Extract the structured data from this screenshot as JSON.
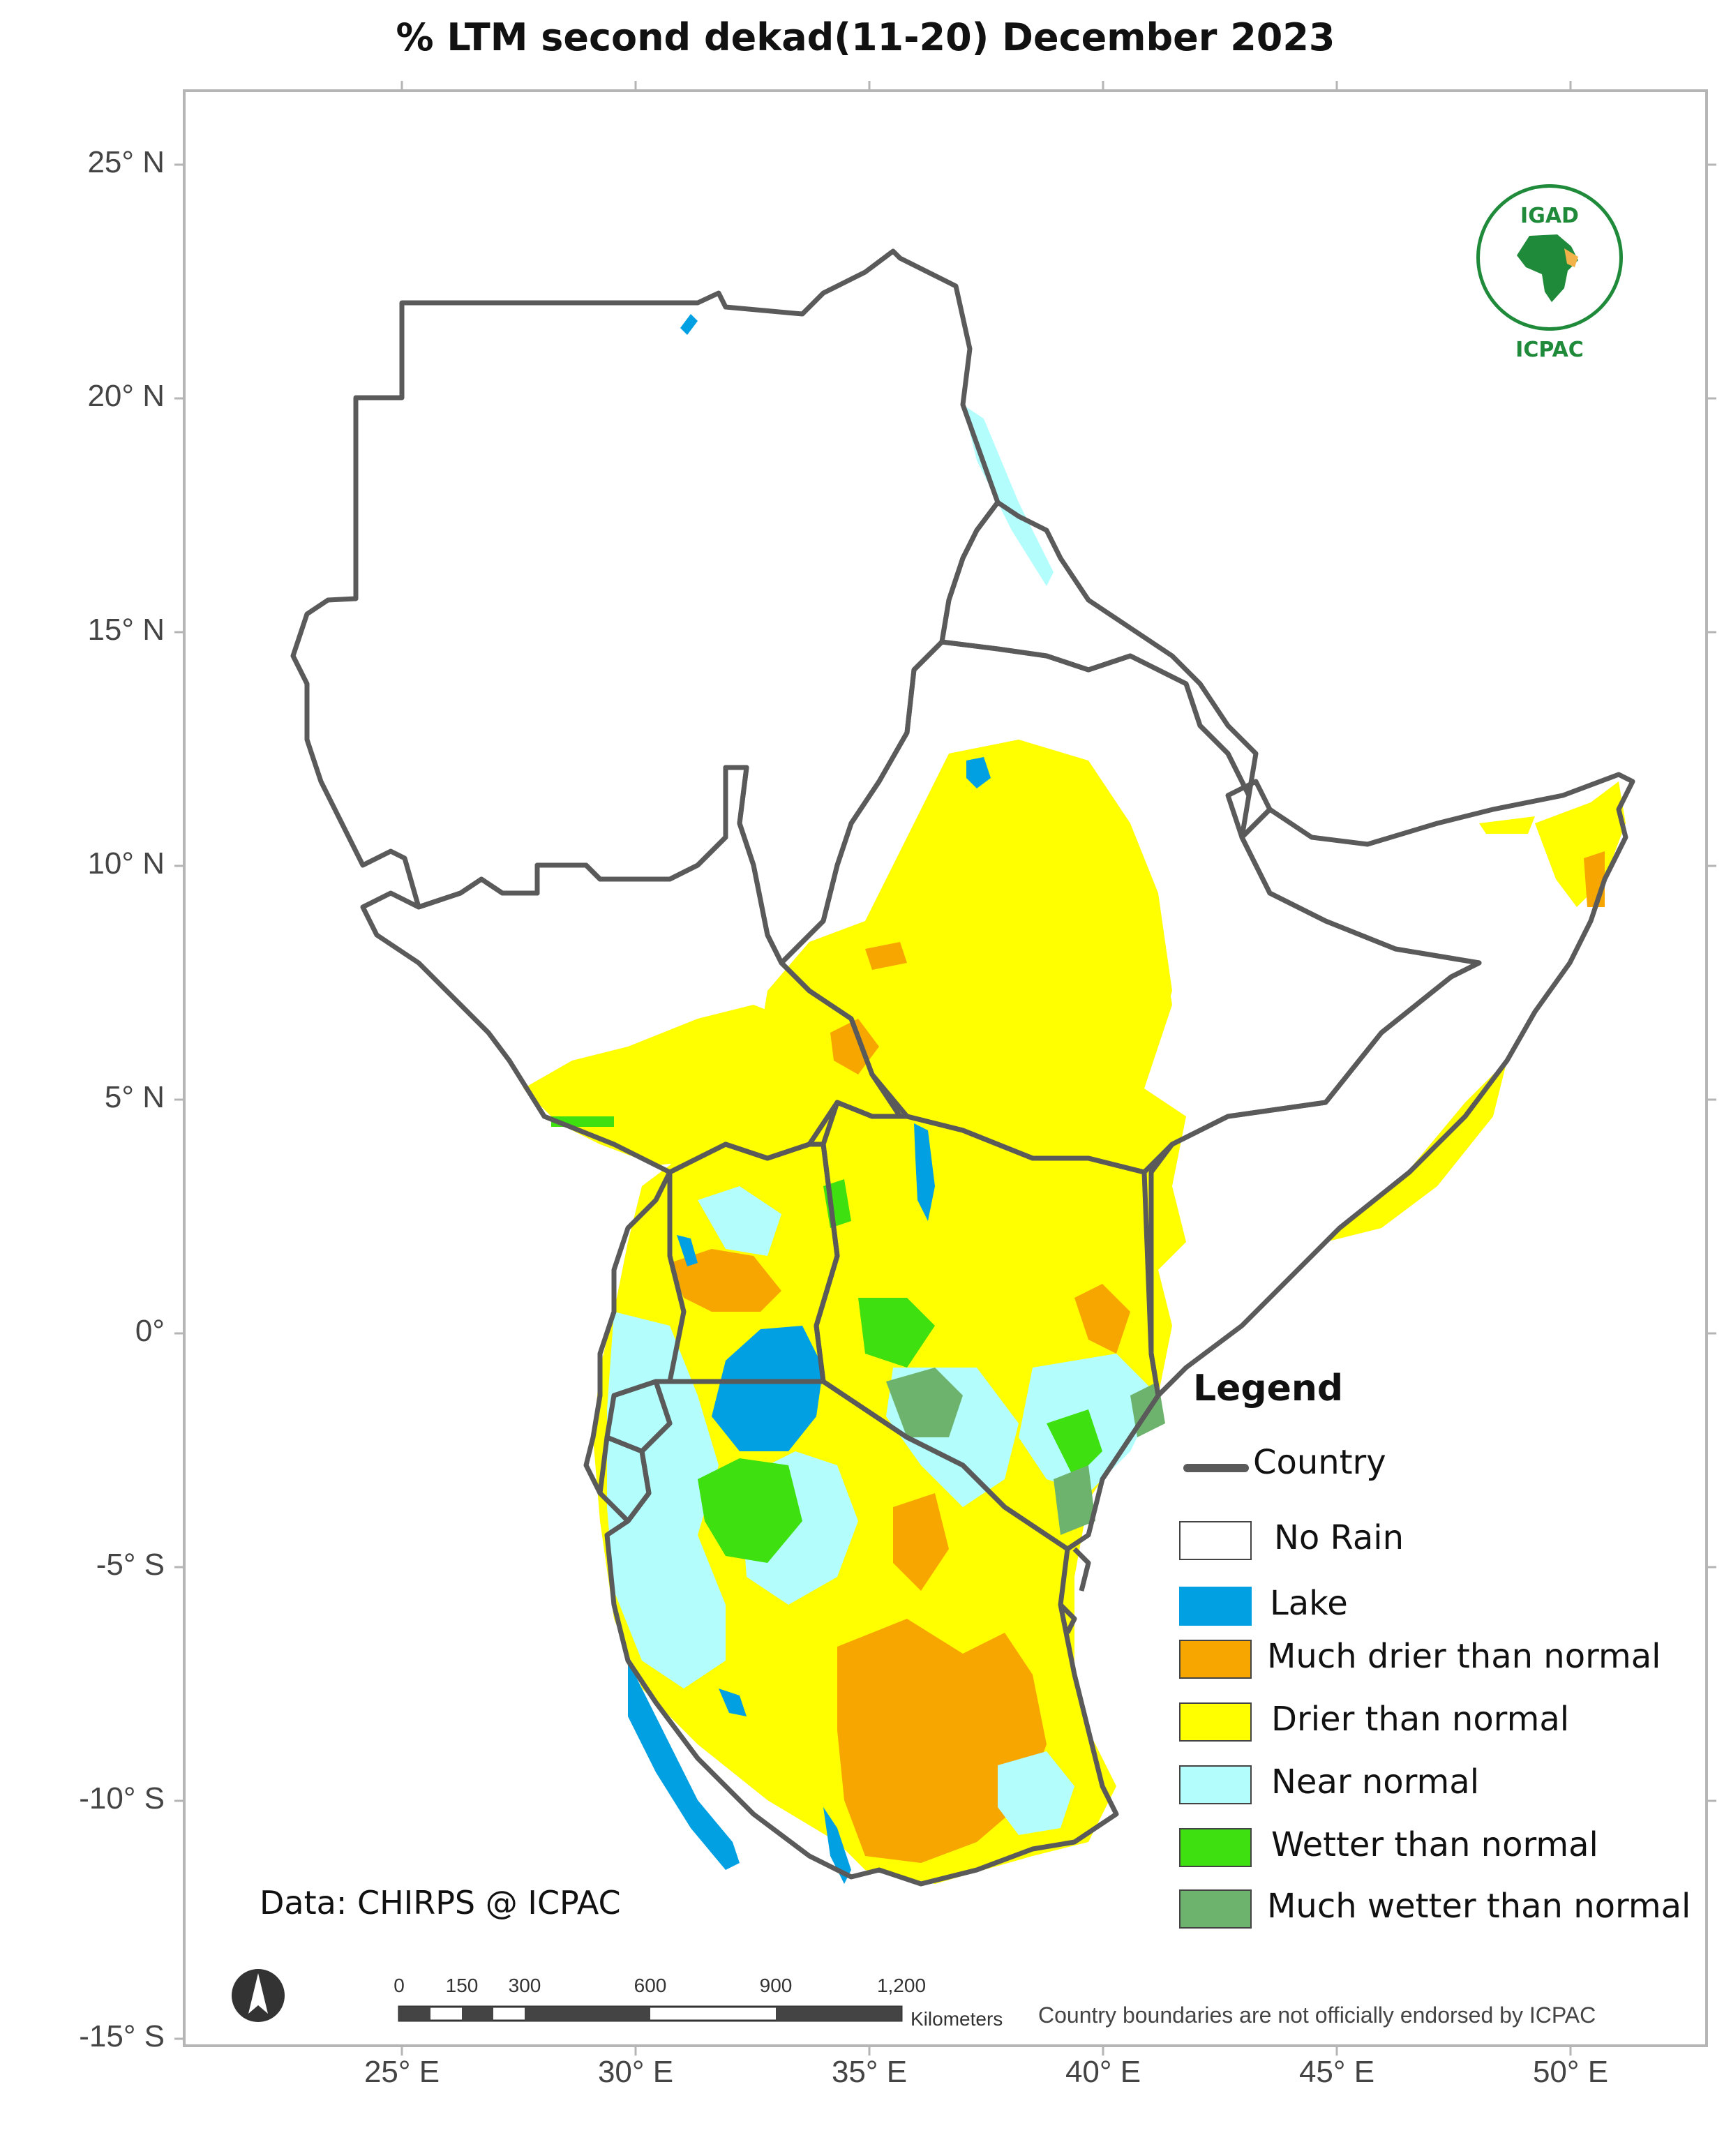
{
  "title": "% LTM  second dekad(11-20) December 2023",
  "axes": {
    "lat_labels": [
      "25° N",
      "20° N",
      "15° N",
      "10° N",
      "5° N",
      "0°",
      "-5° S",
      "-10° S",
      "-15° S"
    ],
    "lon_labels": [
      "25° E",
      "30° E",
      "35° E",
      "40° E",
      "45° E",
      "50° E"
    ]
  },
  "legend": {
    "title": "Legend",
    "country_label": "Country",
    "items": [
      {
        "label": "No Rain",
        "color": "#ffffff"
      },
      {
        "label": "Lake",
        "color": "#00a0e3"
      },
      {
        "label": "Much drier than normal",
        "color": "#f7a600"
      },
      {
        "label": "Drier than normal",
        "color": "#ffff00"
      },
      {
        "label": "Near normal",
        "color": "#b3fdfd"
      },
      {
        "label": "Wetter than normal",
        "color": "#3fe010"
      },
      {
        "label": "Much wetter than normal",
        "color": "#6db36d"
      }
    ]
  },
  "credit": "Data: CHIRPS @ ICPAC",
  "disclaimer": "Country boundaries are not officially endorsed by ICPAC",
  "scale_bar": {
    "ticks": [
      "0",
      "150",
      "300",
      "600",
      "900",
      "1,200"
    ],
    "unit": "Kilometers"
  },
  "logo": {
    "top_text": "IGAD",
    "bottom_text": "ICPAC"
  },
  "colors": {
    "border": "#5a5a5a",
    "frame": "#b5b5b5"
  }
}
